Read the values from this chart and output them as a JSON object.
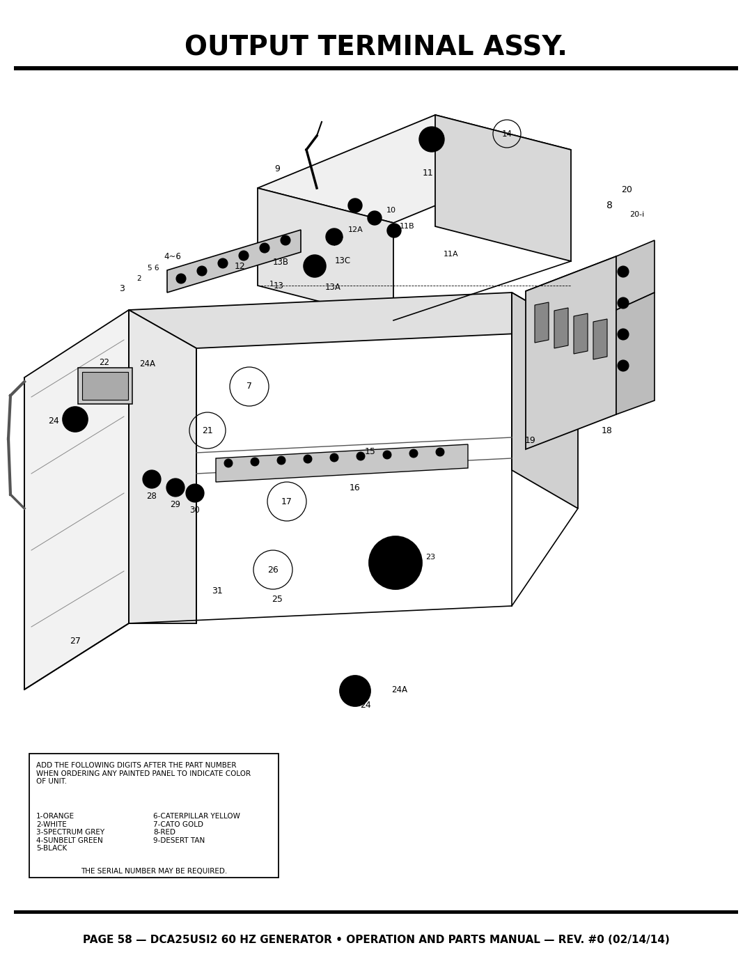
{
  "title": "OUTPUT TERMINAL ASSY.",
  "footer": "PAGE 58 — DCA25USI2 60 HZ GENERATOR • OPERATION AND PARTS MANUAL — REV. #0 (02/14/14)",
  "note_header": "ADD THE FOLLOWING DIGITS AFTER THE PART NUMBER\nWHEN ORDERING ANY PAINTED PANEL TO INDICATE COLOR\nOF UNIT.",
  "color_list_left": "1-ORANGE\n2-WHITE\n3-SPECTRUM GREY\n4-SUNBELT GREEN\n5-BLACK",
  "color_list_right": "6-CATERPILLAR YELLOW\n7-CATO GOLD\n8-RED\n9-DESERT TAN",
  "serial_note": "THE SERIAL NUMBER MAY BE REQUIRED.",
  "bg_color": "#ffffff"
}
